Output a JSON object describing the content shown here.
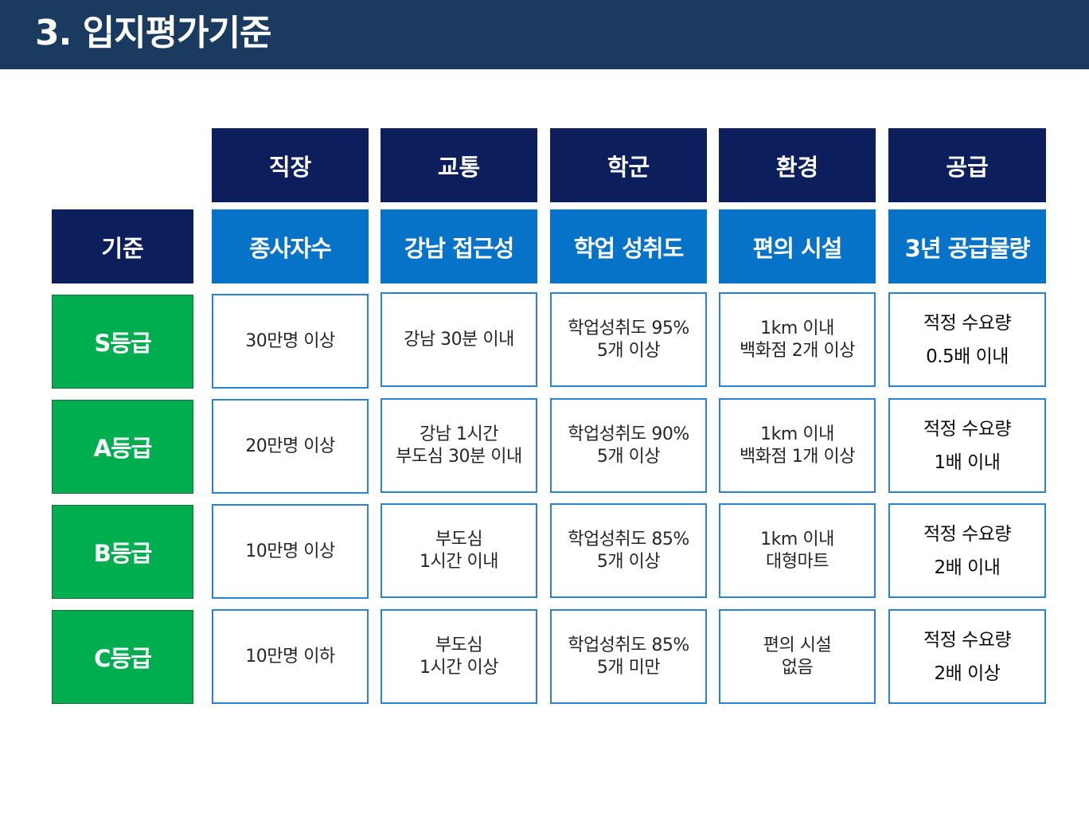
{
  "header": {
    "title": "3. 입지평가기준"
  },
  "table": {
    "corner_label": "기준",
    "categories": [
      "직장",
      "교통",
      "학군",
      "환경",
      "공급"
    ],
    "criteria": [
      "종사자수",
      "강남 접근성",
      "학업 성취도",
      "편의 시설",
      "3년 공급물량"
    ],
    "rows": [
      {
        "grade": "S등급",
        "cells": [
          "30만명 이상",
          "강남 30분 이내",
          "학업성취도 95%\n5개 이상",
          "1km 이내\n백화점 2개 이상",
          "적정 수요량\n0.5배 이내"
        ]
      },
      {
        "grade": "A등급",
        "cells": [
          "20만명 이상",
          "강남 1시간\n부도심 30분 이내",
          "학업성취도 90%\n5개 이상",
          "1km 이내\n백화점 1개 이상",
          "적정 수요량\n1배 이내"
        ]
      },
      {
        "grade": "B등급",
        "cells": [
          "10만명 이상",
          "부도심\n1시간 이내",
          "학업성취도 85%\n5개 이상",
          "1km 이내\n대형마트",
          "적정 수요량\n2배 이내"
        ]
      },
      {
        "grade": "C등급",
        "cells": [
          "10만명 이하",
          "부도심\n1시간 이상",
          "학업성취도 85%\n5개 미만",
          "편의 시설\n없음",
          "적정 수요량\n2배 이상"
        ]
      }
    ]
  },
  "colors": {
    "title_bar": "#1b3a60",
    "category_header": "#0c1f5c",
    "criteria_header": "#0672c8",
    "grade_cell": "#00ad4f",
    "cell_border": "#2a83d2"
  }
}
